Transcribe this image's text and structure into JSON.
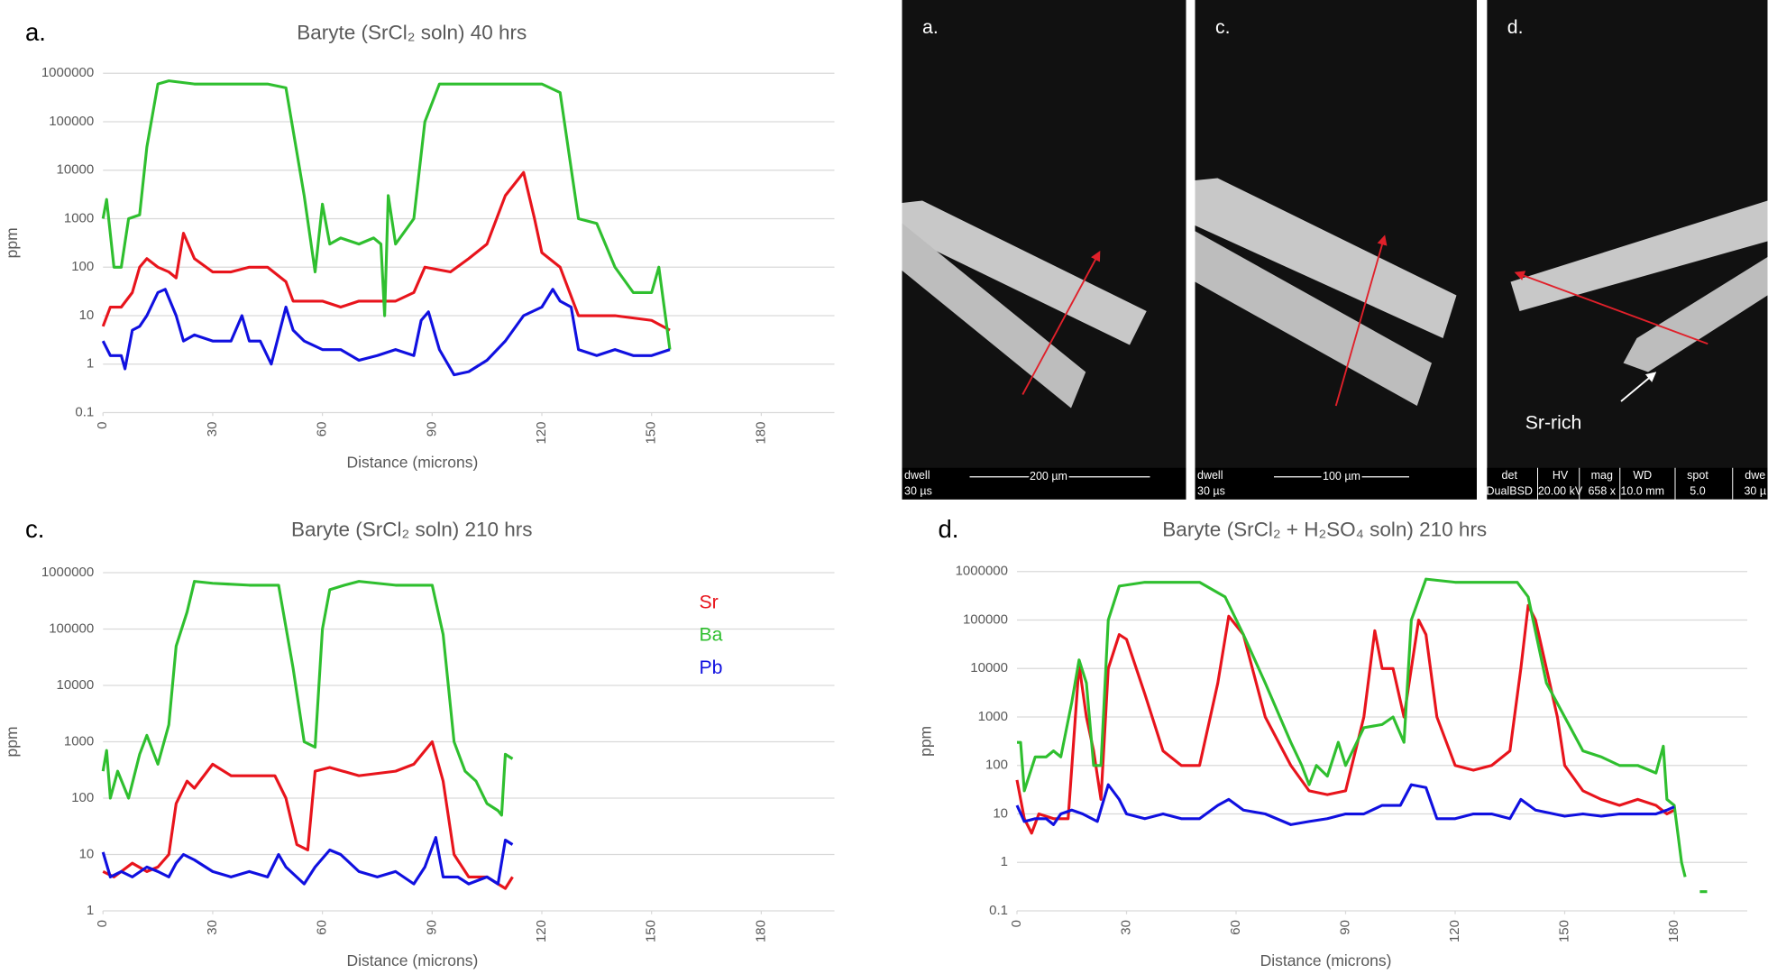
{
  "chart_data": [
    {
      "type": "line",
      "label": "a.",
      "title": "Baryte (SrCl₂ soln) 40 hrs",
      "y_label": "ppm",
      "x_label": "Distance (microns)",
      "log_scale": true,
      "grid": true,
      "xlim": [
        0,
        200
      ],
      "xticks": [
        0,
        30,
        60,
        90,
        120,
        150,
        180
      ],
      "ylim": [
        0.1,
        1000000
      ],
      "yticks": [
        0.1,
        1,
        10,
        100,
        1000,
        10000,
        100000,
        1000000
      ],
      "series": [
        {
          "color": "#e8141c",
          "x": [
            0,
            2,
            5,
            8,
            10,
            12,
            15,
            18,
            20,
            22,
            25,
            30,
            35,
            40,
            45,
            50,
            52,
            60,
            65,
            70,
            75,
            80,
            85,
            88,
            95,
            100,
            105,
            110,
            115,
            118,
            120,
            125,
            130,
            140,
            150,
            155
          ],
          "values": [
            6,
            15,
            15,
            30,
            100,
            150,
            100,
            80,
            60,
            500,
            150,
            80,
            80,
            100,
            100,
            50,
            20,
            20,
            15,
            20,
            20,
            20,
            30,
            100,
            80,
            150,
            300,
            3000,
            9000,
            1000,
            200,
            100,
            10,
            10,
            8,
            5
          ]
        },
        {
          "color": "#2fbf2f",
          "x": [
            0,
            1,
            3,
            5,
            7,
            10,
            12,
            15,
            18,
            25,
            35,
            45,
            50,
            55,
            58,
            60,
            62,
            65,
            70,
            74,
            76,
            77,
            78,
            80,
            85,
            88,
            92,
            100,
            110,
            120,
            125,
            130,
            135,
            140,
            145,
            150,
            152,
            155
          ],
          "values": [
            1000,
            2500,
            100,
            100,
            1000,
            1200,
            30000,
            600000,
            700000,
            600000,
            600000,
            600000,
            500000,
            3000,
            80,
            2000,
            300,
            400,
            300,
            400,
            300,
            10,
            3000,
            300,
            1000,
            100000,
            600000,
            600000,
            600000,
            600000,
            400000,
            1000,
            800,
            100,
            30,
            30,
            100,
            2
          ]
        },
        {
          "color": "#1010e0",
          "x": [
            0,
            2,
            5,
            6,
            8,
            10,
            12,
            15,
            17,
            20,
            22,
            25,
            30,
            35,
            38,
            40,
            43,
            46,
            50,
            52,
            55,
            60,
            65,
            70,
            75,
            80,
            85,
            87,
            89,
            92,
            96,
            100,
            105,
            110,
            115,
            120,
            123,
            125,
            128,
            130,
            135,
            140,
            145,
            150,
            155
          ],
          "values": [
            3,
            1.5,
            1.5,
            0.8,
            5,
            6,
            10,
            30,
            35,
            10,
            3,
            4,
            3,
            3,
            10,
            3,
            3,
            1,
            15,
            5,
            3,
            2,
            2,
            1.2,
            1.5,
            2,
            1.5,
            8,
            12,
            2,
            0.6,
            0.7,
            1.2,
            3,
            10,
            15,
            35,
            20,
            15,
            2,
            1.5,
            2,
            1.5,
            1.5,
            2
          ]
        }
      ]
    },
    {
      "type": "line",
      "label": "c.",
      "title": "Baryte (SrCl₂ soln) 210 hrs",
      "y_label": "ppm",
      "x_label": "Distance (microns)",
      "log_scale": true,
      "grid": true,
      "legend": true,
      "xlim": [
        0,
        200
      ],
      "xticks": [
        0,
        30,
        60,
        90,
        120,
        150,
        180
      ],
      "ylim": [
        1,
        1000000
      ],
      "yticks": [
        1,
        10,
        100,
        1000,
        10000,
        100000,
        1000000
      ],
      "series": [
        {
          "name": "Sr",
          "color": "#e8141c",
          "x": [
            0,
            3,
            5,
            8,
            12,
            15,
            18,
            20,
            23,
            25,
            30,
            35,
            40,
            47,
            50,
            53,
            56,
            58,
            62,
            70,
            80,
            85,
            90,
            93,
            96,
            100,
            105,
            108,
            110,
            112
          ],
          "values": [
            5,
            4,
            5,
            7,
            5,
            6,
            10,
            80,
            200,
            150,
            400,
            250,
            250,
            250,
            100,
            15,
            12,
            300,
            350,
            250,
            300,
            400,
            1000,
            200,
            10,
            4,
            4,
            3,
            2.5,
            4
          ]
        },
        {
          "name": "Ba",
          "color": "#2fbf2f",
          "x": [
            0,
            1,
            2,
            4,
            7,
            10,
            12,
            15,
            18,
            20,
            23,
            25,
            30,
            40,
            48,
            52,
            55,
            58,
            60,
            62,
            66,
            70,
            80,
            90,
            93,
            96,
            99,
            102,
            105,
            108,
            109,
            110,
            112
          ],
          "values": [
            300,
            700,
            100,
            300,
            100,
            600,
            1300,
            400,
            2000,
            50000,
            200000,
            700000,
            650000,
            600000,
            600000,
            20000,
            1000,
            800,
            100000,
            500000,
            600000,
            700000,
            600000,
            600000,
            80000,
            1000,
            300,
            200,
            80,
            60,
            50,
            600,
            500
          ]
        },
        {
          "name": "Pb",
          "color": "#1010e0",
          "x": [
            0,
            2,
            5,
            8,
            12,
            15,
            18,
            20,
            22,
            25,
            30,
            35,
            40,
            45,
            48,
            50,
            55,
            58,
            62,
            65,
            70,
            75,
            80,
            85,
            88,
            91,
            93,
            97,
            100,
            105,
            108,
            110,
            112
          ],
          "values": [
            11,
            4,
            5,
            4,
            6,
            5,
            4,
            7,
            10,
            8,
            5,
            4,
            5,
            4,
            10,
            6,
            3,
            6,
            12,
            10,
            5,
            4,
            5,
            3,
            6,
            20,
            4,
            4,
            3,
            4,
            3,
            18,
            15
          ]
        }
      ]
    },
    {
      "type": "line",
      "label": "d.",
      "title": "Baryte (SrCl₂ + H₂SO₄ soln) 210 hrs",
      "y_label": "ppm",
      "x_label": "Distance (microns)",
      "log_scale": true,
      "grid": true,
      "xlim": [
        0,
        200
      ],
      "xticks": [
        0,
        30,
        60,
        90,
        120,
        150,
        180
      ],
      "ylim": [
        0.1,
        1000000
      ],
      "yticks": [
        0.1,
        1,
        10,
        100,
        1000,
        10000,
        100000,
        1000000
      ],
      "series": [
        {
          "color": "#e8141c",
          "x": [
            0,
            2,
            4,
            6,
            10,
            14,
            17,
            19,
            21,
            23,
            25,
            28,
            30,
            35,
            40,
            45,
            50,
            55,
            58,
            62,
            68,
            75,
            80,
            85,
            90,
            95,
            98,
            100,
            103,
            106,
            110,
            112,
            115,
            120,
            125,
            130,
            135,
            138,
            140,
            142,
            148,
            150,
            155,
            160,
            165,
            170,
            175,
            178,
            180
          ],
          "values": [
            50,
            8,
            4,
            10,
            8,
            8,
            12000,
            1000,
            200,
            20,
            10000,
            50000,
            40000,
            3000,
            200,
            100,
            100,
            5000,
            120000,
            50000,
            1000,
            100,
            30,
            25,
            30,
            1000,
            60000,
            10000,
            10000,
            1000,
            100000,
            50000,
            1000,
            100,
            80,
            100,
            200,
            10000,
            200000,
            100000,
            1000,
            100,
            30,
            20,
            15,
            20,
            15,
            10,
            12
          ]
        },
        {
          "color": "#2fbf2f",
          "x": [
            0,
            1,
            2,
            5,
            8,
            10,
            12,
            15,
            17,
            19,
            21,
            23,
            25,
            28,
            35,
            50,
            57,
            62,
            68,
            75,
            78,
            80,
            82,
            85,
            88,
            90,
            95,
            100,
            103,
            106,
            108,
            112,
            120,
            130,
            137,
            140,
            145,
            150,
            155,
            160,
            165,
            170,
            175,
            177,
            178,
            180,
            182,
            183,
            185,
            187,
            189
          ],
          "values": [
            300,
            300,
            30,
            150,
            150,
            200,
            150,
            2000,
            15000,
            5000,
            100,
            100,
            100000,
            500000,
            600000,
            600000,
            300000,
            50000,
            5000,
            300,
            100,
            40,
            100,
            60,
            300,
            100,
            600,
            700,
            1000,
            300,
            100000,
            700000,
            600000,
            600000,
            600000,
            300000,
            5000,
            1000,
            200,
            150,
            100,
            100,
            70,
            250,
            20,
            15,
            1,
            0.5,
            null,
            0.25,
            0.25
          ]
        },
        {
          "color": "#1010e0",
          "x": [
            0,
            2,
            5,
            8,
            10,
            12,
            15,
            18,
            22,
            25,
            28,
            30,
            35,
            40,
            45,
            50,
            55,
            58,
            62,
            68,
            75,
            80,
            85,
            90,
            95,
            100,
            105,
            108,
            112,
            115,
            120,
            125,
            130,
            135,
            138,
            142,
            150,
            155,
            160,
            165,
            170,
            175,
            178,
            180
          ],
          "values": [
            15,
            7,
            8,
            8,
            6,
            10,
            12,
            10,
            7,
            40,
            20,
            10,
            8,
            10,
            8,
            8,
            15,
            20,
            12,
            10,
            6,
            7,
            8,
            10,
            10,
            15,
            15,
            40,
            35,
            8,
            8,
            10,
            10,
            8,
            20,
            12,
            9,
            10,
            9,
            10,
            10,
            10,
            12,
            14
          ]
        }
      ]
    }
  ],
  "images": [
    {
      "label": "a.",
      "info": [
        [
          "dwell",
          "30 µs"
        ]
      ],
      "scale": "200 µm"
    },
    {
      "label": "c.",
      "info": [
        [
          "dwell",
          "30 µs"
        ]
      ],
      "scale": "100 µm"
    },
    {
      "label": "d.",
      "info": [
        [
          "det",
          "DualBSD"
        ],
        [
          "HV",
          "20.00 kV"
        ],
        [
          "mag",
          "658 x"
        ],
        [
          "WD",
          "10.0 mm"
        ],
        [
          "spot",
          "5.0"
        ],
        [
          "dwe",
          "30 µ"
        ]
      ],
      "annotation": "Sr-rich"
    }
  ]
}
